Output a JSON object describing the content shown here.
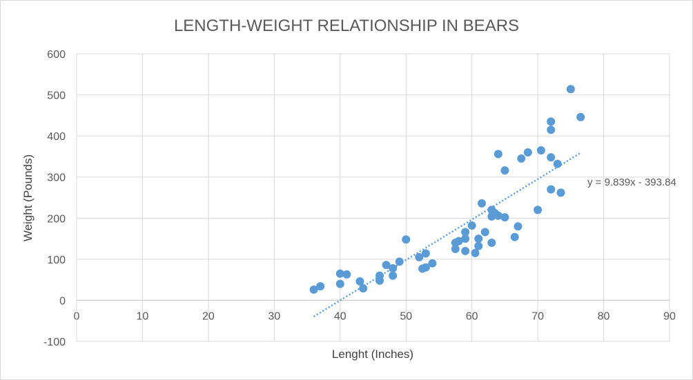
{
  "chart_data": {
    "type": "scatter",
    "title": "LENGTH-WEIGHT RELATIONSHIP IN BEARS",
    "xlabel": "Lenght (Inches)",
    "ylabel": "Weight (Pounds)",
    "xlim": [
      0,
      90
    ],
    "ylim": [
      -100,
      600
    ],
    "xticks": [
      0,
      10,
      20,
      30,
      40,
      50,
      60,
      70,
      80,
      90
    ],
    "yticks": [
      -100,
      0,
      100,
      200,
      300,
      400,
      500,
      600
    ],
    "grid": true,
    "point_color": "#5B9BD5",
    "series": [
      {
        "points": [
          [
            36,
            26
          ],
          [
            37,
            34
          ],
          [
            40,
            65
          ],
          [
            40,
            40
          ],
          [
            41,
            63
          ],
          [
            43,
            46
          ],
          [
            43.5,
            29
          ],
          [
            46,
            60
          ],
          [
            46,
            48
          ],
          [
            47,
            86
          ],
          [
            48,
            60
          ],
          [
            48,
            78
          ],
          [
            49,
            94
          ],
          [
            50,
            148
          ],
          [
            52,
            105
          ],
          [
            52.5,
            77
          ],
          [
            53,
            80
          ],
          [
            53,
            114
          ],
          [
            54,
            90
          ],
          [
            57.5,
            140
          ],
          [
            57.5,
            125
          ],
          [
            58,
            144
          ],
          [
            59,
            166
          ],
          [
            59,
            150
          ],
          [
            59,
            120
          ],
          [
            60,
            182
          ],
          [
            60.5,
            115
          ],
          [
            61,
            150
          ],
          [
            61,
            132
          ],
          [
            61.5,
            236
          ],
          [
            62,
            166
          ],
          [
            63,
            220
          ],
          [
            63,
            140
          ],
          [
            63,
            204
          ],
          [
            63.5,
            212
          ],
          [
            64,
            206
          ],
          [
            64,
            356
          ],
          [
            65,
            316
          ],
          [
            65,
            202
          ],
          [
            66.5,
            154
          ],
          [
            67,
            180
          ],
          [
            67.5,
            345
          ],
          [
            68.5,
            360
          ],
          [
            70,
            220
          ],
          [
            70.5,
            365
          ],
          [
            72,
            435
          ],
          [
            72,
            415
          ],
          [
            72,
            348
          ],
          [
            72,
            270
          ],
          [
            73,
            332
          ],
          [
            73.5,
            262
          ],
          [
            75,
            514
          ],
          [
            76.5,
            446
          ]
        ]
      }
    ],
    "trendline": {
      "type": "linear",
      "slope": 9.839,
      "intercept": -393.84,
      "x_range": [
        36,
        76.5
      ],
      "label": "y = 9.839x - 393.84",
      "color": "#5B9BD5"
    }
  }
}
